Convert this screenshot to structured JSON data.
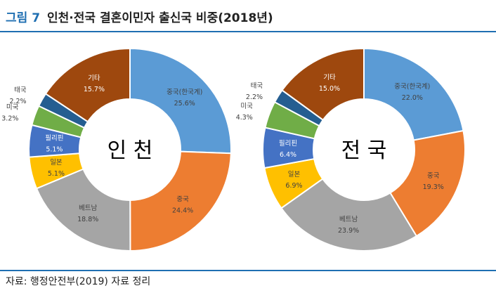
{
  "figure": {
    "number": "그림 7",
    "title": "인천·전국 결혼이민자 출신국 비중(2018년)",
    "source": "자료: 행정안전부(2019) 자료 정리"
  },
  "colors": {
    "accent": "#1f6fb2",
    "china_korean": "#5b9bd5",
    "china": "#ed7d31",
    "vietnam": "#a5a5a5",
    "japan": "#ffc000",
    "philippines": "#4472c4",
    "usa": "#70ad47",
    "thailand": "#255e91",
    "other": "#9e480e"
  },
  "chart_data": [
    {
      "type": "pie",
      "center_label": "인 천",
      "labels": [
        "중국(한국계)",
        "중국",
        "베트남",
        "일본",
        "필리핀",
        "미국",
        "태국",
        "기타"
      ],
      "values": [
        25.6,
        24.4,
        18.8,
        5.1,
        5.1,
        3.2,
        2.2,
        15.7
      ],
      "value_labels": [
        "25.6%",
        "24.4%",
        "18.8%",
        "5.1%",
        "5.1%",
        "3.2%",
        "2.2%",
        "15.7%"
      ],
      "donut": true,
      "legend": "none"
    },
    {
      "type": "pie",
      "center_label": "전 국",
      "labels": [
        "중국(한국계)",
        "중국",
        "베트남",
        "일본",
        "필리핀",
        "미국",
        "태국",
        "기타"
      ],
      "values": [
        22.0,
        19.3,
        23.9,
        6.9,
        6.4,
        4.3,
        2.2,
        15.0
      ],
      "value_labels": [
        "22.0%",
        "19.3%",
        "23.9%",
        "6.9%",
        "6.4%",
        "4.3%",
        "2.2%",
        "15.0%"
      ],
      "donut": true,
      "legend": "none"
    }
  ]
}
